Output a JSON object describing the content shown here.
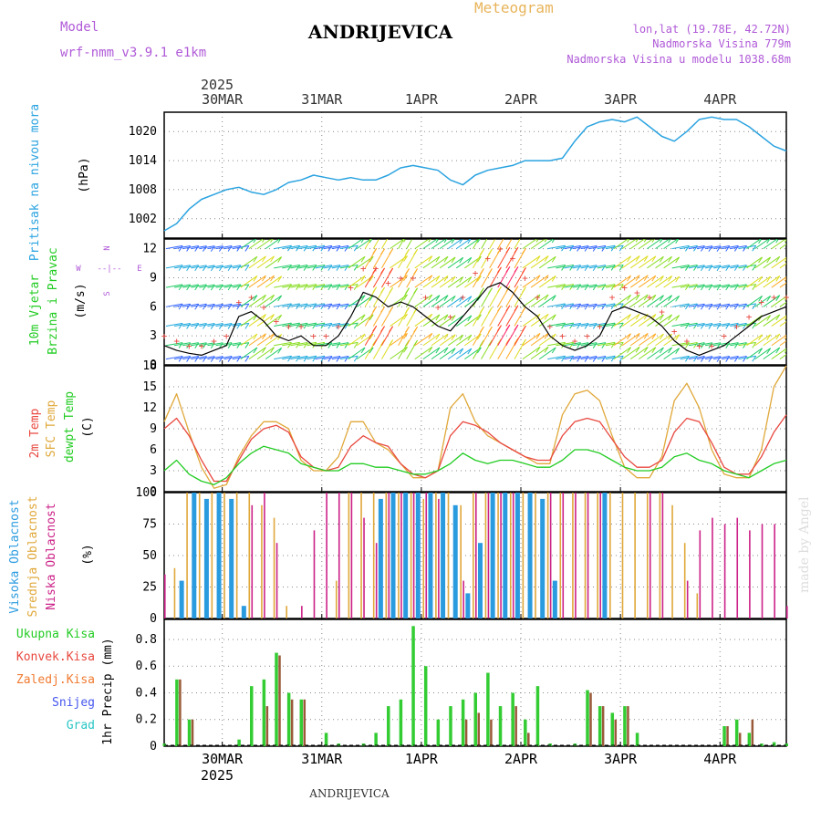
{
  "header": {
    "model_label": "Model",
    "model_name": "wrf-nmm_v3.9.1  e1km",
    "station": "ANDRIJEVICA",
    "product": "Meteogram",
    "lonlat": "lon,lat (19.78E, 42.72N)",
    "elevation": "Nadmorska Visina 779m",
    "model_elevation": "Nadmorska Visina u modelu 1038.68m",
    "footer_station": "ANDRIJEVICA",
    "watermark": "made by Angel"
  },
  "colors": {
    "pressure": "#2aa3e0",
    "t2m": "#e8483f",
    "sfc": "#e0a83a",
    "dewpt": "#22cc22",
    "high_cloud": "#2b9be0",
    "mid_cloud": "#e0a83a",
    "low_cloud": "#cc2288",
    "total_precip": "#33cc33",
    "conv_precip": "#9a5a3a",
    "wind_speed": "#000000",
    "gust": "#e8483f",
    "header_purple": "#b05ad8",
    "header_gold": "#e8b45a"
  },
  "time_axis": {
    "year": "2025",
    "day_labels": [
      "30MAR",
      "31MAR",
      "1APR",
      "2APR",
      "3APR",
      "4APR"
    ],
    "hours_total": 150
  },
  "chart_data": [
    {
      "type": "line",
      "panel": "pressure",
      "title": "Pritisak na nivou mora",
      "ylabel": "(hPa)",
      "ylim": [
        998,
        1024
      ],
      "yticks": [
        1002,
        1008,
        1014,
        1020
      ],
      "grid": true,
      "x_hours": [
        0,
        3,
        6,
        9,
        12,
        15,
        18,
        21,
        24,
        27,
        30,
        33,
        36,
        39,
        42,
        45,
        48,
        51,
        54,
        57,
        60,
        63,
        66,
        69,
        72,
        75,
        78,
        81,
        84,
        87,
        90,
        93,
        96,
        99,
        102,
        105,
        108,
        111,
        114,
        117,
        120,
        123,
        126,
        129,
        132,
        135,
        138,
        141,
        144,
        147,
        150
      ],
      "series": [
        {
          "name": "Pritisak na nivou mora",
          "values": [
            999.5,
            1001,
            1004,
            1006,
            1007,
            1008,
            1008.5,
            1007.5,
            1007,
            1008,
            1009.5,
            1010,
            1011,
            1010.5,
            1010,
            1010.5,
            1010,
            1010,
            1011,
            1012.5,
            1013,
            1012.5,
            1012,
            1010,
            1009,
            1011,
            1012,
            1012.5,
            1013,
            1014,
            1014,
            1014,
            1014.5,
            1018,
            1021,
            1022,
            1022.5,
            1022,
            1023,
            1021,
            1019,
            1018,
            1020,
            1022.5,
            1023,
            1022.5,
            1022.5,
            1021,
            1019,
            1017,
            1016
          ]
        }
      ]
    },
    {
      "type": "line",
      "panel": "wind",
      "title": "10m Vjetar Brzina i Pravac",
      "ylabel": "(m/s)",
      "ylim": [
        0,
        13
      ],
      "yticks": [
        0,
        3,
        6,
        9,
        12
      ],
      "compass": "N, S, W, E",
      "x_hours": [
        0,
        3,
        6,
        9,
        12,
        15,
        18,
        21,
        24,
        27,
        30,
        33,
        36,
        39,
        42,
        45,
        48,
        51,
        54,
        57,
        60,
        63,
        66,
        69,
        72,
        75,
        78,
        81,
        84,
        87,
        90,
        93,
        96,
        99,
        102,
        105,
        108,
        111,
        114,
        117,
        120,
        123,
        126,
        129,
        132,
        135,
        138,
        141,
        144,
        147,
        150
      ],
      "series": [
        {
          "name": "wind_speed",
          "values": [
            2,
            1.5,
            1.2,
            1,
            1.5,
            2,
            5,
            5.5,
            4.5,
            3,
            2.5,
            3,
            2,
            2,
            3,
            5,
            7.5,
            7,
            6,
            6.5,
            6,
            5,
            4,
            3.5,
            5,
            6.5,
            8,
            8.5,
            7.5,
            6,
            5,
            3,
            2,
            1.5,
            2,
            3,
            5.5,
            6,
            5.5,
            5,
            4,
            2.5,
            1.5,
            1,
            1.5,
            2,
            3,
            4,
            5,
            5.5,
            6
          ]
        },
        {
          "name": "gust",
          "values": [
            3,
            2.5,
            2,
            2,
            2.5,
            3,
            6.5,
            7,
            6,
            4.5,
            4,
            4,
            3,
            3,
            4,
            8,
            10,
            10,
            8.5,
            9,
            9,
            7,
            6,
            5,
            7,
            9.5,
            11,
            12,
            11,
            9,
            7,
            4,
            3,
            2.5,
            3,
            4,
            7,
            8,
            7.5,
            7,
            5.5,
            3.5,
            2.5,
            2,
            2,
            3,
            4,
            5,
            6.5,
            7,
            7
          ]
        }
      ]
    },
    {
      "type": "line",
      "panel": "temperature",
      "ylabel": "(C)",
      "ylim": [
        0,
        18
      ],
      "yticks": [
        0,
        3,
        6,
        9,
        12,
        15,
        18
      ],
      "x_hours": [
        0,
        3,
        6,
        9,
        12,
        15,
        18,
        21,
        24,
        27,
        30,
        33,
        36,
        39,
        42,
        45,
        48,
        51,
        54,
        57,
        60,
        63,
        66,
        69,
        72,
        75,
        78,
        81,
        84,
        87,
        90,
        93,
        96,
        99,
        102,
        105,
        108,
        111,
        114,
        117,
        120,
        123,
        126,
        129,
        132,
        135,
        138,
        141,
        144,
        147,
        150
      ],
      "series": [
        {
          "name": "2m Temp",
          "values": [
            9,
            10.5,
            8,
            4.5,
            1.5,
            1.5,
            4.5,
            7.5,
            9,
            9.5,
            8.5,
            5,
            3.5,
            3,
            3.5,
            6.5,
            8,
            7,
            6.5,
            4,
            2.5,
            2,
            3,
            8,
            10,
            9.5,
            8.5,
            7,
            6,
            5,
            4.5,
            4.5,
            8,
            10,
            10.5,
            10,
            7.5,
            5,
            3.5,
            3.5,
            4.5,
            8.5,
            10.5,
            10,
            7,
            3.5,
            2.5,
            2.5,
            5,
            8.5,
            11
          ]
        },
        {
          "name": "SFC Temp",
          "values": [
            10,
            14,
            8.5,
            3.5,
            0.5,
            1,
            5,
            8,
            10,
            10,
            9,
            4.5,
            3,
            3,
            5,
            10,
            10,
            7,
            6,
            4,
            2,
            2,
            3,
            12,
            14,
            10,
            8,
            7,
            6,
            5,
            4,
            4,
            11,
            14,
            14.5,
            13,
            8,
            3.5,
            2,
            2,
            5,
            13,
            15.5,
            12,
            6,
            2.5,
            2,
            2,
            6,
            15,
            18
          ]
        },
        {
          "name": "dewpt Temp",
          "values": [
            3,
            4.5,
            2.5,
            1.5,
            1,
            2,
            4,
            5.5,
            6.5,
            6,
            5.5,
            4,
            3.5,
            3,
            3,
            4,
            4,
            3.5,
            3.5,
            3,
            2.5,
            2.5,
            3,
            4,
            5.5,
            4.5,
            4,
            4.5,
            4.5,
            4,
            3.5,
            3.5,
            4.5,
            6,
            6,
            5.5,
            4.5,
            3.5,
            3,
            3,
            3.5,
            5,
            5.5,
            4.5,
            4,
            3,
            2.5,
            2,
            3,
            4,
            4.5
          ]
        }
      ]
    },
    {
      "type": "bar",
      "panel": "clouds",
      "ylabel": "(%)",
      "ylim": [
        0,
        100
      ],
      "yticks": [
        0,
        25,
        50,
        75,
        100
      ],
      "x_hours": [
        0,
        3,
        6,
        9,
        12,
        15,
        18,
        21,
        24,
        27,
        30,
        33,
        36,
        39,
        42,
        45,
        48,
        51,
        54,
        57,
        60,
        63,
        66,
        69,
        72,
        75,
        78,
        81,
        84,
        87,
        90,
        93,
        96,
        99,
        102,
        105,
        108,
        111,
        114,
        117,
        120,
        123,
        126,
        129,
        132,
        135,
        138,
        141,
        144,
        147,
        150
      ],
      "series": [
        {
          "name": "Visoka Oblacnost",
          "values": [
            0,
            30,
            100,
            95,
            100,
            95,
            10,
            0,
            0,
            0,
            0,
            0,
            0,
            0,
            0,
            0,
            0,
            95,
            100,
            100,
            100,
            100,
            100,
            90,
            20,
            60,
            100,
            100,
            100,
            100,
            95,
            30,
            0,
            0,
            0,
            100,
            0,
            0,
            0,
            0,
            0,
            0,
            0,
            0,
            0,
            0,
            0,
            0,
            0,
            0,
            0
          ]
        },
        {
          "name": "Srednja Oblacnost",
          "values": [
            0,
            40,
            100,
            100,
            100,
            100,
            100,
            100,
            90,
            80,
            10,
            0,
            0,
            0,
            30,
            100,
            100,
            100,
            100,
            100,
            100,
            95,
            100,
            100,
            90,
            100,
            100,
            100,
            100,
            100,
            100,
            100,
            100,
            100,
            100,
            100,
            100,
            100,
            100,
            100,
            100,
            90,
            60,
            20,
            0,
            0,
            0,
            0,
            0,
            0,
            0
          ]
        },
        {
          "name": "Niska Oblacnost",
          "values": [
            35,
            0,
            0,
            0,
            0,
            0,
            0,
            90,
            100,
            60,
            0,
            10,
            70,
            100,
            100,
            100,
            80,
            60,
            100,
            100,
            100,
            100,
            95,
            0,
            30,
            100,
            100,
            100,
            100,
            0,
            0,
            100,
            100,
            100,
            100,
            100,
            0,
            0,
            0,
            100,
            100,
            0,
            30,
            70,
            80,
            75,
            80,
            70,
            75,
            75,
            10
          ]
        }
      ]
    },
    {
      "type": "bar",
      "panel": "precipitation",
      "ylabel": "1hr Precip (mm)",
      "ylim": [
        0,
        0.95
      ],
      "yticks": [
        0,
        0.2,
        0.4,
        0.6,
        0.8
      ],
      "legend": [
        "Ukupna Kisa",
        "Konvek.Kisa",
        "Zaledj.Kisa",
        "Snijeg",
        "Grad"
      ],
      "x_hours": [
        0,
        3,
        6,
        9,
        12,
        15,
        18,
        21,
        24,
        27,
        30,
        33,
        36,
        39,
        42,
        45,
        48,
        51,
        54,
        57,
        60,
        63,
        66,
        69,
        72,
        75,
        78,
        81,
        84,
        87,
        90,
        93,
        96,
        99,
        102,
        105,
        108,
        111,
        114,
        117,
        120,
        123,
        126,
        129,
        132,
        135,
        138,
        141,
        144,
        147,
        150
      ],
      "series": [
        {
          "name": "Ukupna Kisa",
          "values": [
            0.02,
            0.5,
            0.2,
            0,
            0,
            0,
            0.05,
            0.45,
            0.5,
            0.7,
            0.4,
            0.35,
            0,
            0.1,
            0.02,
            0,
            0.02,
            0.1,
            0.3,
            0.35,
            0.9,
            0.6,
            0.2,
            0.3,
            0.35,
            0.4,
            0.55,
            0.3,
            0.4,
            0.2,
            0.45,
            0.02,
            0,
            0.02,
            0.42,
            0.3,
            0.25,
            0.3,
            0.1,
            0,
            0,
            0,
            0,
            0,
            0,
            0.15,
            0.2,
            0.1,
            0.02,
            0.03,
            0.02
          ]
        },
        {
          "name": "Konvek.Kisa",
          "values": [
            0,
            0.5,
            0.2,
            0,
            0,
            0,
            0,
            0,
            0.3,
            0.68,
            0.35,
            0.35,
            0,
            0,
            0,
            0,
            0,
            0,
            0,
            0,
            0,
            0,
            0,
            0,
            0.2,
            0.25,
            0.2,
            0,
            0.3,
            0.1,
            0,
            0,
            0,
            0,
            0.4,
            0.3,
            0.2,
            0.3,
            0,
            0,
            0,
            0,
            0,
            0,
            0,
            0.15,
            0.1,
            0.2,
            0,
            0,
            0
          ]
        }
      ]
    }
  ]
}
